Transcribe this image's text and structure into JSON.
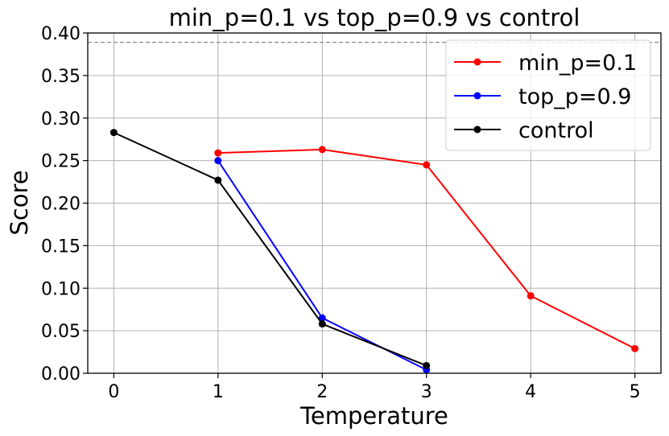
{
  "chart_data": {
    "type": "line",
    "title": "min_p=0.1 vs top_p=0.9 vs control",
    "xlabel": "Temperature",
    "ylabel": "Score",
    "xlim": [
      -0.25,
      5.25
    ],
    "ylim": [
      0,
      0.4
    ],
    "xticks": [
      0,
      1,
      2,
      3,
      4,
      5
    ],
    "xtick_labels": [
      "0",
      "1",
      "2",
      "3",
      "4",
      "5"
    ],
    "yticks": [
      0,
      0.05,
      0.1,
      0.15,
      0.2,
      0.25,
      0.3,
      0.35,
      0.4
    ],
    "ytick_labels": [
      "0.00",
      "0.05",
      "0.10",
      "0.15",
      "0.20",
      "0.25",
      "0.30",
      "0.35",
      "0.40"
    ],
    "grid": true,
    "legend_position": "top-right",
    "reference_line": {
      "y": 0.389,
      "style": "dashed",
      "color": "#888888"
    },
    "series": [
      {
        "name": "min_p=0.1",
        "color": "#ff0000",
        "x": [
          1,
          2,
          3,
          4,
          5
        ],
        "y": [
          0.259,
          0.263,
          0.245,
          0.091,
          0.029
        ]
      },
      {
        "name": "top_p=0.9",
        "color": "#0000ff",
        "x": [
          1,
          2,
          3
        ],
        "y": [
          0.25,
          0.065,
          0.004
        ]
      },
      {
        "name": "control",
        "color": "#000000",
        "x": [
          0,
          1,
          2,
          3
        ],
        "y": [
          0.283,
          0.227,
          0.058,
          0.009
        ]
      }
    ]
  }
}
